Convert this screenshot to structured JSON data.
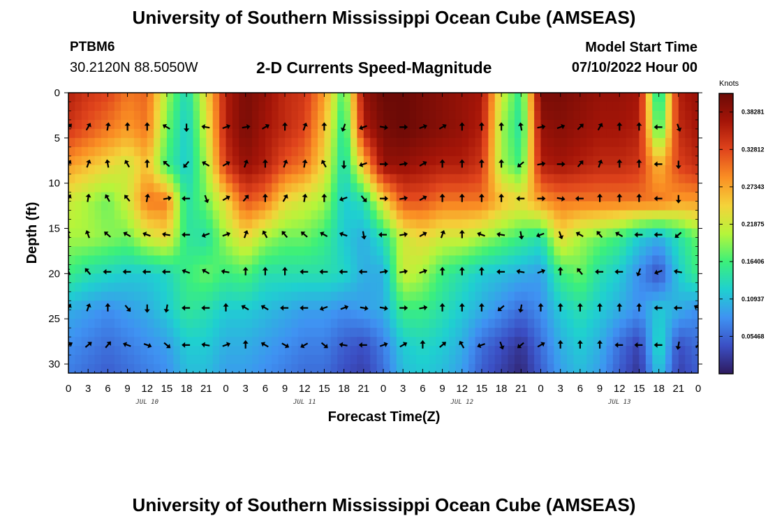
{
  "header": {
    "title": "University of Southern Mississippi Ocean Cube (AMSEAS)",
    "station": "PTBM6",
    "coords": "30.2120N  88.5050W",
    "subtitle": "2-D Currents Speed-Magnitude",
    "start_label": "Model Start Time",
    "start_value": "07/10/2022 Hour 00"
  },
  "footer": {
    "title": "University of Southern Mississippi Ocean Cube (AMSEAS)"
  },
  "colorbar": {
    "units": "Knots",
    "labels": [
      "0.38281",
      "0.32812",
      "0.27343",
      "0.21875",
      "0.16406",
      "0.10937",
      "0.05468"
    ],
    "colors": [
      "#2e1a5e",
      "#3b4fc4",
      "#3f92f2",
      "#1fd0d0",
      "#3cf07a",
      "#b6f53a",
      "#f4d33a",
      "#fa8f24",
      "#e0441c",
      "#a51508",
      "#6b0a06"
    ]
  },
  "chart_data": {
    "type": "heatmap",
    "title": "2-D Currents Speed-Magnitude",
    "xlabel": "Forecast Time(Z)",
    "ylabel": "Depth (ft)",
    "units": "Knots",
    "x_tick_labels": [
      "0",
      "3",
      "6",
      "9",
      "12",
      "15",
      "18",
      "21",
      "0",
      "3",
      "6",
      "9",
      "12",
      "15",
      "18",
      "21",
      "0",
      "3",
      "6",
      "9",
      "12",
      "15",
      "18",
      "21",
      "0",
      "3",
      "6",
      "9",
      "12",
      "15",
      "18",
      "21",
      "0"
    ],
    "y_ticks": [
      0,
      5,
      10,
      15,
      20,
      25,
      30
    ],
    "y_tick_labels": [
      "0",
      "5",
      "10",
      "15",
      "20",
      "25",
      "30"
    ],
    "ylim": [
      0,
      31
    ],
    "day_labels": [
      {
        "label": "JUL 10",
        "hour": 12
      },
      {
        "label": "JUL 11",
        "hour": 36
      },
      {
        "label": "JUL 12",
        "hour": 60
      },
      {
        "label": "JUL 13",
        "hour": 84
      }
    ],
    "color_range": [
      0.0,
      0.41
    ],
    "hours": [
      0,
      3,
      6,
      9,
      12,
      15,
      18,
      21,
      24,
      27,
      30,
      33,
      36,
      39,
      42,
      45,
      48,
      51,
      54,
      57,
      60,
      63,
      66,
      69,
      72,
      75,
      78,
      81,
      84,
      87,
      90,
      93,
      96
    ],
    "depths": [
      0,
      4,
      8,
      12,
      16,
      20,
      24,
      28,
      31
    ],
    "speed": [
      [
        0.36,
        0.34,
        0.33,
        0.3,
        0.31,
        0.2,
        0.13,
        0.24,
        0.36,
        0.4,
        0.38,
        0.35,
        0.34,
        0.28,
        0.16,
        0.38,
        0.41,
        0.41,
        0.4,
        0.39,
        0.38,
        0.37,
        0.22,
        0.15,
        0.4,
        0.4,
        0.39,
        0.38,
        0.38,
        0.37,
        0.12,
        0.36,
        0.38
      ],
      [
        0.34,
        0.32,
        0.3,
        0.28,
        0.3,
        0.18,
        0.12,
        0.22,
        0.36,
        0.4,
        0.37,
        0.35,
        0.33,
        0.26,
        0.14,
        0.36,
        0.4,
        0.41,
        0.4,
        0.39,
        0.38,
        0.36,
        0.2,
        0.14,
        0.38,
        0.39,
        0.38,
        0.37,
        0.37,
        0.36,
        0.15,
        0.35,
        0.37
      ],
      [
        0.28,
        0.26,
        0.24,
        0.22,
        0.26,
        0.16,
        0.12,
        0.2,
        0.34,
        0.38,
        0.36,
        0.32,
        0.3,
        0.24,
        0.13,
        0.26,
        0.38,
        0.38,
        0.37,
        0.36,
        0.36,
        0.34,
        0.2,
        0.16,
        0.36,
        0.37,
        0.36,
        0.35,
        0.35,
        0.34,
        0.26,
        0.33,
        0.35
      ],
      [
        0.22,
        0.2,
        0.18,
        0.22,
        0.3,
        0.3,
        0.14,
        0.18,
        0.24,
        0.32,
        0.3,
        0.24,
        0.22,
        0.2,
        0.12,
        0.14,
        0.24,
        0.32,
        0.32,
        0.3,
        0.3,
        0.3,
        0.26,
        0.24,
        0.28,
        0.3,
        0.3,
        0.3,
        0.3,
        0.3,
        0.3,
        0.28,
        0.28
      ],
      [
        0.2,
        0.2,
        0.19,
        0.18,
        0.22,
        0.24,
        0.15,
        0.14,
        0.2,
        0.24,
        0.2,
        0.18,
        0.18,
        0.16,
        0.12,
        0.1,
        0.14,
        0.22,
        0.24,
        0.22,
        0.22,
        0.2,
        0.18,
        0.16,
        0.14,
        0.24,
        0.2,
        0.18,
        0.16,
        0.12,
        0.1,
        0.14,
        0.18
      ],
      [
        0.16,
        0.14,
        0.13,
        0.12,
        0.12,
        0.13,
        0.16,
        0.18,
        0.16,
        0.17,
        0.14,
        0.14,
        0.14,
        0.14,
        0.13,
        0.1,
        0.1,
        0.22,
        0.2,
        0.16,
        0.14,
        0.12,
        0.11,
        0.1,
        0.09,
        0.16,
        0.18,
        0.14,
        0.12,
        0.08,
        0.04,
        0.12,
        0.16
      ],
      [
        0.1,
        0.09,
        0.08,
        0.09,
        0.1,
        0.12,
        0.15,
        0.14,
        0.12,
        0.12,
        0.11,
        0.1,
        0.09,
        0.09,
        0.08,
        0.09,
        0.1,
        0.16,
        0.16,
        0.14,
        0.12,
        0.1,
        0.08,
        0.06,
        0.08,
        0.12,
        0.14,
        0.12,
        0.1,
        0.08,
        0.12,
        0.1,
        0.08
      ],
      [
        0.08,
        0.07,
        0.06,
        0.07,
        0.08,
        0.09,
        0.12,
        0.12,
        0.1,
        0.1,
        0.09,
        0.08,
        0.07,
        0.07,
        0.05,
        0.04,
        0.07,
        0.12,
        0.13,
        0.12,
        0.1,
        0.06,
        0.04,
        0.02,
        0.06,
        0.1,
        0.12,
        0.1,
        0.06,
        0.03,
        0.14,
        0.04,
        0.06
      ],
      [
        0.07,
        0.06,
        0.05,
        0.06,
        0.07,
        0.08,
        0.11,
        0.11,
        0.09,
        0.09,
        0.08,
        0.07,
        0.06,
        0.06,
        0.04,
        0.03,
        0.06,
        0.11,
        0.12,
        0.11,
        0.09,
        0.05,
        0.03,
        0.01,
        0.05,
        0.09,
        0.11,
        0.09,
        0.05,
        0.02,
        0.12,
        0.03,
        0.05
      ]
    ],
    "vectors": {
      "depths": [
        3.8,
        7.9,
        11.7,
        15.7,
        19.8,
        23.8,
        27.9
      ],
      "directions_deg": [
        [
          45,
          30,
          10,
          0,
          0,
          300,
          180,
          280,
          70,
          80,
          60,
          0,
          20,
          0,
          200,
          250,
          100,
          90,
          70,
          60,
          0,
          0,
          0,
          350,
          80,
          70,
          45,
          30,
          0,
          0,
          270,
          160,
          null
        ],
        [
          30,
          20,
          350,
          330,
          0,
          310,
          220,
          300,
          60,
          20,
          0,
          20,
          10,
          330,
          180,
          250,
          90,
          80,
          60,
          0,
          0,
          0,
          0,
          230,
          80,
          90,
          40,
          20,
          0,
          0,
          270,
          180,
          null
        ],
        [
          30,
          10,
          330,
          320,
          10,
          80,
          270,
          160,
          60,
          40,
          0,
          30,
          10,
          0,
          250,
          140,
          90,
          80,
          60,
          0,
          0,
          0,
          0,
          270,
          90,
          100,
          270,
          0,
          0,
          0,
          270,
          180,
          null
        ],
        [
          350,
          340,
          310,
          300,
          290,
          280,
          270,
          250,
          70,
          20,
          330,
          320,
          310,
          300,
          290,
          170,
          270,
          80,
          60,
          20,
          0,
          290,
          280,
          170,
          250,
          160,
          300,
          320,
          300,
          270,
          270,
          230,
          null
        ],
        [
          330,
          320,
          270,
          270,
          270,
          270,
          290,
          300,
          280,
          0,
          0,
          0,
          270,
          270,
          270,
          270,
          80,
          80,
          70,
          0,
          0,
          0,
          270,
          280,
          70,
          0,
          320,
          270,
          270,
          200,
          250,
          280,
          null
        ],
        [
          30,
          20,
          0,
          140,
          180,
          190,
          270,
          270,
          0,
          300,
          300,
          270,
          270,
          250,
          70,
          100,
          100,
          90,
          80,
          0,
          0,
          0,
          230,
          190,
          0,
          0,
          0,
          0,
          0,
          0,
          270,
          270,
          300
        ],
        [
          60,
          50,
          40,
          290,
          110,
          130,
          270,
          280,
          70,
          0,
          300,
          120,
          240,
          130,
          280,
          270,
          70,
          60,
          0,
          50,
          330,
          250,
          160,
          230,
          60,
          0,
          0,
          0,
          270,
          270,
          270,
          190,
          40
        ]
      ]
    }
  }
}
